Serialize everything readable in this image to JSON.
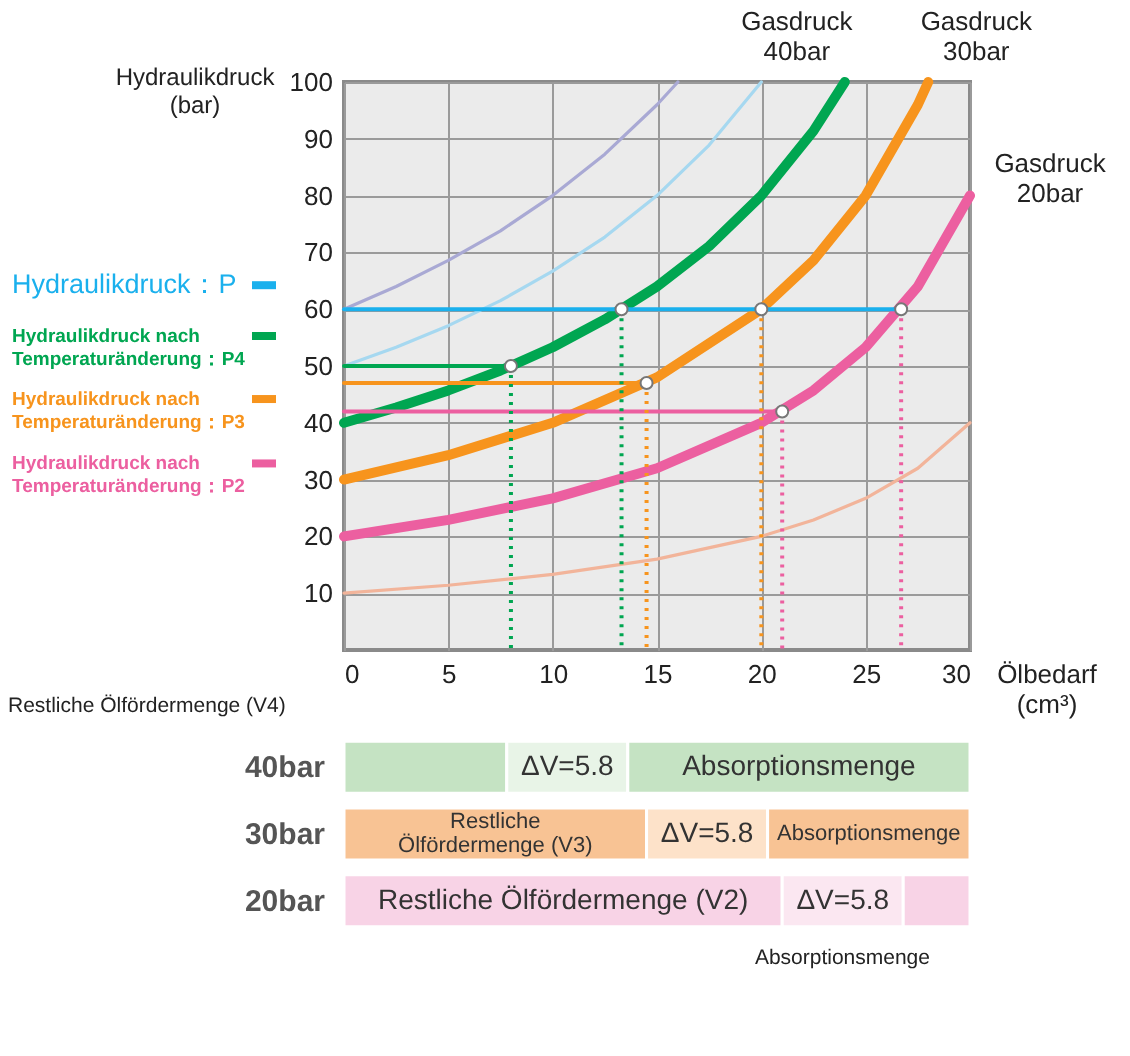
{
  "chart_data": [
    {
      "type": "line",
      "xlabel": "Ölbedarf (cm³)",
      "ylabel": "Hydraulikdruck (bar)",
      "xlim": [
        0,
        30
      ],
      "ylim": [
        0,
        100
      ],
      "xticks": [
        0,
        5,
        10,
        15,
        20,
        25,
        30
      ],
      "yticks": [
        10,
        20,
        30,
        40,
        50,
        60,
        70,
        80,
        90,
        100
      ],
      "grid": true,
      "legend": "left",
      "series": [
        {
          "color": "#a9a9d4",
          "x": [
            0,
            2.5,
            5,
            7.5,
            10,
            12.5,
            15,
            16
          ],
          "values": [
            60,
            64,
            68.6,
            73.8,
            80,
            87.3,
            96,
            100
          ]
        },
        {
          "color": "#a6d8f0",
          "x": [
            0,
            2.5,
            5,
            7.5,
            10,
            12.5,
            15,
            17.5,
            20
          ],
          "values": [
            50,
            53.3,
            57.1,
            61.5,
            66.7,
            72.7,
            80,
            88.9,
            100
          ]
        },
        {
          "name": "Gasdruck 40bar",
          "color": "#00a651",
          "x": [
            0,
            2.5,
            5,
            7.5,
            10,
            12.5,
            15,
            17.5,
            20,
            22.5,
            24
          ],
          "values": [
            40,
            42.7,
            45.7,
            49.2,
            53.3,
            58.2,
            64,
            71.1,
            80,
            91.4,
            100
          ]
        },
        {
          "name": "Gasdruck 30bar",
          "color": "#f7941d",
          "x": [
            0,
            5,
            10,
            15,
            20,
            22.5,
            25,
            27.5,
            28
          ],
          "values": [
            30,
            34.3,
            40,
            48,
            60,
            68.6,
            80,
            96,
            100
          ]
        },
        {
          "name": "Gasdruck 20bar",
          "color": "#ec5fa0",
          "x": [
            0,
            5,
            10,
            15,
            20,
            22.5,
            25,
            27.5,
            30
          ],
          "values": [
            20,
            22.9,
            26.7,
            32,
            40,
            45.7,
            53.3,
            64,
            80
          ]
        },
        {
          "color": "#f2b49a",
          "x": [
            0,
            5,
            10,
            15,
            20,
            22.5,
            25,
            27.5,
            30
          ],
          "values": [
            10,
            11.4,
            13.3,
            16,
            20,
            22.9,
            26.7,
            32,
            40
          ]
        },
        {
          "name": "Hydraulikdruck：P",
          "color": "#1ab0ed",
          "x": [
            0,
            26.7
          ],
          "values": [
            60,
            60
          ]
        },
        {
          "name": "Hydraulikdruck nach Temperaturänderung：P4",
          "color": "#00a651",
          "x": [
            0,
            8
          ],
          "values": [
            50,
            50
          ]
        },
        {
          "name": "Hydraulikdruck nach Temperaturänderung：P3",
          "color": "#f7941d",
          "x": [
            0,
            14.5
          ],
          "values": [
            47,
            47
          ]
        },
        {
          "name": "Hydraulikdruck nach Temperaturänderung：P2",
          "color": "#ec5fa0",
          "x": [
            0,
            21
          ],
          "values": [
            42,
            42
          ]
        },
        {
          "color": "#00a651",
          "line_style": "dotted",
          "x": [
            8,
            8
          ],
          "values": [
            50,
            0
          ]
        },
        {
          "color": "#00a651",
          "line_style": "dotted",
          "x": [
            13.3,
            13.3
          ],
          "values": [
            60,
            0
          ]
        },
        {
          "color": "#f7941d",
          "line_style": "dotted",
          "x": [
            14.5,
            14.5
          ],
          "values": [
            47,
            0
          ]
        },
        {
          "color": "#f7941d",
          "line_style": "dotted",
          "x": [
            20,
            20
          ],
          "values": [
            60,
            0
          ]
        },
        {
          "color": "#ec5fa0",
          "line_style": "dotted",
          "x": [
            21,
            21
          ],
          "values": [
            42,
            0
          ]
        },
        {
          "color": "#ec5fa0",
          "line_style": "dotted",
          "x": [
            26.7,
            26.7
          ],
          "values": [
            60,
            0
          ]
        },
        {
          "type": "scatter",
          "marker": "circle",
          "color": "#ffffff",
          "x": [
            13.3,
            20,
            26.7,
            8,
            14.5,
            21
          ],
          "values": [
            60,
            60,
            60,
            50,
            47,
            42
          ]
        }
      ]
    },
    {
      "type": "bar",
      "orientation": "horizontal",
      "stacked": true,
      "categories": [
        "40bar",
        "30bar",
        "20bar"
      ],
      "xlim": [
        0,
        30
      ],
      "xticks": [
        0,
        5,
        10,
        15,
        20,
        25,
        30
      ],
      "tick_labels": "y",
      "annotations": [
        "Restliche Ölfördermenge (V4)",
        "Absorptionsmenge"
      ],
      "series": [
        {
          "colors": [
            "#c5e3c3",
            "#f8c394",
            "#f8d3e6"
          ],
          "values": [
            7.8,
            14.5,
            21
          ],
          "value_labels": [
            null,
            "Restliche Ölfördermenge (V3)",
            "Restliche Ölfördermenge (V2)"
          ]
        },
        {
          "colors": [
            "#e8f4e7",
            "#fde2c9",
            "#fbe7f1"
          ],
          "values": [
            5.8,
            5.8,
            5.8
          ],
          "value_labels": [
            "ΔV=5.8",
            "ΔV=5.8",
            "ΔV=5.8"
          ]
        },
        {
          "colors": [
            "#c5e3c3",
            "#f8c394",
            "#f8d3e6"
          ],
          "values": [
            16.4,
            9.7,
            3.2
          ],
          "value_labels": [
            "Absorptionsmenge",
            "Absorptionsmenge",
            null
          ]
        }
      ]
    }
  ]
}
